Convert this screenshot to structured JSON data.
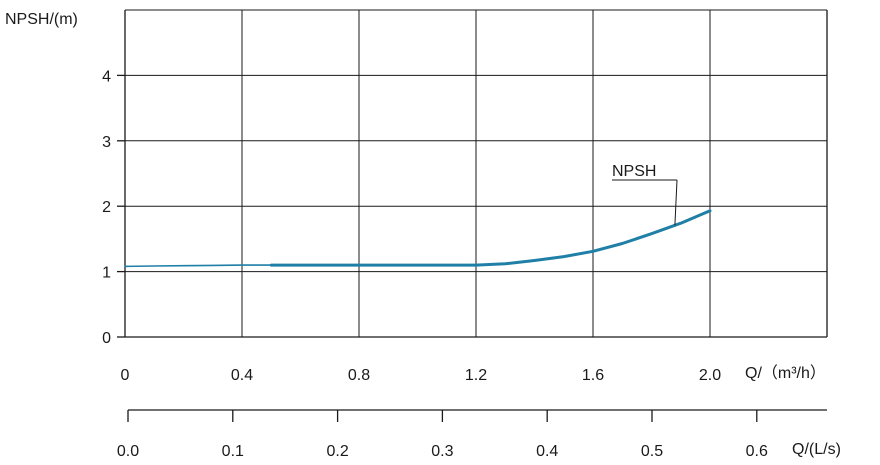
{
  "chart_data": {
    "type": "line",
    "ylabel": "NPSH/(m)",
    "xlabel_primary": "Q/（m³/h）",
    "xlabel_secondary": "Q/(L/s)",
    "xlim": [
      0,
      2.4
    ],
    "ylim": [
      0,
      5
    ],
    "x_ticks": [
      "0",
      "0.4",
      "0.8",
      "1.2",
      "1.6",
      "2.0"
    ],
    "x_tick_values": [
      0,
      0.4,
      0.8,
      1.2,
      1.6,
      2.0
    ],
    "y_ticks": [
      "0",
      "1",
      "2",
      "3",
      "4"
    ],
    "y_tick_values": [
      0,
      1,
      2,
      3,
      4
    ],
    "secondary_axis": {
      "ticks": [
        "0.0",
        "0.1",
        "0.2",
        "0.3",
        "0.4",
        "0.5",
        "0.6"
      ],
      "tick_values": [
        0,
        0.1,
        0.2,
        0.3,
        0.4,
        0.5,
        0.6
      ],
      "lim": [
        0,
        0.667
      ]
    },
    "grid": true,
    "series": [
      {
        "name": "NPSH",
        "color": "#1f7fa6",
        "thin_until_x": 0.5,
        "x": [
          0,
          0.1,
          0.2,
          0.3,
          0.4,
          0.5,
          0.6,
          0.8,
          1.0,
          1.2,
          1.3,
          1.4,
          1.5,
          1.6,
          1.7,
          1.8,
          1.9,
          2.0
        ],
        "y": [
          1.08,
          1.085,
          1.09,
          1.095,
          1.1,
          1.1,
          1.1,
          1.1,
          1.1,
          1.1,
          1.12,
          1.17,
          1.23,
          1.31,
          1.43,
          1.58,
          1.74,
          1.93
        ]
      }
    ]
  }
}
